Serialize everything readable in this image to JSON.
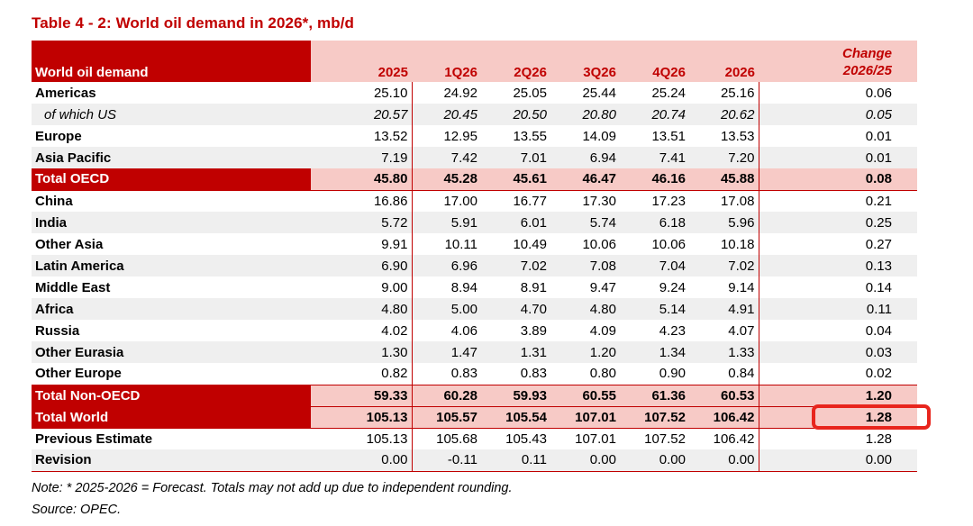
{
  "title": "Table 4 - 2: World oil demand in 2026*, mb/d",
  "colors": {
    "dark_red": "#c00000",
    "header_pink": "#f7cac6",
    "band_gray": "#efefef",
    "highlight_red": "#e8251d"
  },
  "table": {
    "header": {
      "label": "World oil demand",
      "columns": [
        "2025",
        "1Q26",
        "2Q26",
        "3Q26",
        "4Q26",
        "2026"
      ],
      "change_line1": "Change",
      "change_line2": "2026/25"
    },
    "rows": [
      {
        "label": "Americas",
        "variant": "plain",
        "shade": "white",
        "values": [
          "25.10",
          "24.92",
          "25.05",
          "25.44",
          "25.24",
          "25.16",
          "0.06"
        ]
      },
      {
        "label": "of which US",
        "variant": "sub",
        "shade": "gray",
        "values": [
          "20.57",
          "20.45",
          "20.50",
          "20.80",
          "20.74",
          "20.62",
          "0.05"
        ]
      },
      {
        "label": "Europe",
        "variant": "plain",
        "shade": "white",
        "values": [
          "13.52",
          "12.95",
          "13.55",
          "14.09",
          "13.51",
          "13.53",
          "0.01"
        ]
      },
      {
        "label": "Asia Pacific",
        "variant": "plain",
        "shade": "gray",
        "values": [
          "7.19",
          "7.42",
          "7.01",
          "6.94",
          "7.41",
          "7.20",
          "0.01"
        ]
      },
      {
        "label": "Total OECD",
        "variant": "total",
        "shade": "pink",
        "rule_bottom": true,
        "values": [
          "45.80",
          "45.28",
          "45.61",
          "46.47",
          "46.16",
          "45.88",
          "0.08"
        ]
      },
      {
        "label": "China",
        "variant": "plain",
        "shade": "white",
        "values": [
          "16.86",
          "17.00",
          "16.77",
          "17.30",
          "17.23",
          "17.08",
          "0.21"
        ]
      },
      {
        "label": "India",
        "variant": "plain",
        "shade": "gray",
        "values": [
          "5.72",
          "5.91",
          "6.01",
          "5.74",
          "6.18",
          "5.96",
          "0.25"
        ]
      },
      {
        "label": "Other Asia",
        "variant": "plain",
        "shade": "white",
        "values": [
          "9.91",
          "10.11",
          "10.49",
          "10.06",
          "10.06",
          "10.18",
          "0.27"
        ]
      },
      {
        "label": "Latin America",
        "variant": "plain",
        "shade": "gray",
        "values": [
          "6.90",
          "6.96",
          "7.02",
          "7.08",
          "7.04",
          "7.02",
          "0.13"
        ]
      },
      {
        "label": "Middle East",
        "variant": "plain",
        "shade": "white",
        "values": [
          "9.00",
          "8.94",
          "8.91",
          "9.47",
          "9.24",
          "9.14",
          "0.14"
        ]
      },
      {
        "label": "Africa",
        "variant": "plain",
        "shade": "gray",
        "values": [
          "4.80",
          "5.00",
          "4.70",
          "4.80",
          "5.14",
          "4.91",
          "0.11"
        ]
      },
      {
        "label": "Russia",
        "variant": "plain",
        "shade": "white",
        "values": [
          "4.02",
          "4.06",
          "3.89",
          "4.09",
          "4.23",
          "4.07",
          "0.04"
        ]
      },
      {
        "label": "Other Eurasia",
        "variant": "plain",
        "shade": "gray",
        "values": [
          "1.30",
          "1.47",
          "1.31",
          "1.20",
          "1.34",
          "1.33",
          "0.03"
        ]
      },
      {
        "label": "Other Europe",
        "variant": "plain",
        "shade": "white",
        "values": [
          "0.82",
          "0.83",
          "0.83",
          "0.80",
          "0.90",
          "0.84",
          "0.02"
        ]
      },
      {
        "label": "Total Non-OECD",
        "variant": "total",
        "shade": "pink",
        "rule_top": true,
        "rule_bottom": true,
        "values": [
          "59.33",
          "60.28",
          "59.93",
          "60.55",
          "61.36",
          "60.53",
          "1.20"
        ]
      },
      {
        "label": "Total World",
        "variant": "total",
        "shade": "pink",
        "rule_bottom": true,
        "highlight_change": true,
        "values": [
          "105.13",
          "105.57",
          "105.54",
          "107.01",
          "107.52",
          "106.42",
          "1.28"
        ]
      },
      {
        "label": "Previous Estimate",
        "variant": "plain",
        "shade": "white",
        "values": [
          "105.13",
          "105.68",
          "105.43",
          "107.01",
          "107.52",
          "106.42",
          "1.28"
        ]
      },
      {
        "label": "Revision",
        "variant": "plain",
        "shade": "gray",
        "rule_bottom": true,
        "values": [
          "0.00",
          "-0.11",
          "0.11",
          "0.00",
          "0.00",
          "0.00",
          "0.00"
        ]
      }
    ]
  },
  "notes": {
    "note": "Note: * 2025-2026 = Forecast. Totals may not add up due to independent rounding.",
    "source": "Source: OPEC."
  }
}
